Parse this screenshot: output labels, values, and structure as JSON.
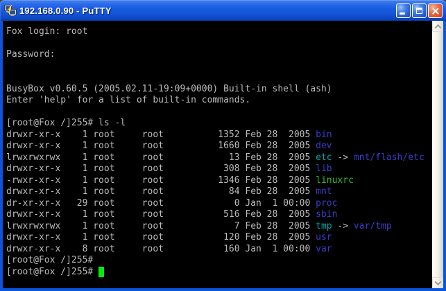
{
  "window": {
    "title": "192.168.0.90 - PuTTY",
    "icon": "putty-icon",
    "controls": {
      "minimize_label": "Minimize",
      "maximize_label": "Maximize",
      "close_label": "Close"
    }
  },
  "terminal": {
    "colors": {
      "background": "#000000",
      "fg": "#bcbcbc",
      "dir": "#3b3bcc",
      "sym": "#00aaaa",
      "exe": "#33bb33",
      "cur": "#00ee00"
    },
    "prompt": "[root@Fox /]255#",
    "lines": [
      [
        {
          "t": "Fox login: root",
          "c": "fg"
        }
      ],
      [],
      [
        {
          "t": "Password:",
          "c": "fg"
        }
      ],
      [],
      [],
      [
        {
          "t": "BusyBox v0.60.5 (2005.02.11-19:09+0000) Built-in shell (ash)",
          "c": "fg"
        }
      ],
      [
        {
          "t": "Enter 'help' for a list of built-in commands.",
          "c": "fg"
        }
      ],
      [],
      [
        {
          "t": "[root@Fox /]255# ls -l",
          "c": "fg"
        }
      ],
      [
        {
          "t": "drwxr-xr-x    1 root     root          1352 Feb 28  2005 ",
          "c": "fg"
        },
        {
          "t": "bin",
          "c": "dir"
        }
      ],
      [
        {
          "t": "drwxr-xr-x    1 root     root          1660 Feb 28  2005 ",
          "c": "fg"
        },
        {
          "t": "dev",
          "c": "dir"
        }
      ],
      [
        {
          "t": "lrwxrwxrwx    1 root     root            13 Feb 28  2005 ",
          "c": "fg"
        },
        {
          "t": "etc",
          "c": "sym"
        },
        {
          "t": " -> ",
          "c": "fg"
        },
        {
          "t": "mnt/flash/etc",
          "c": "dir"
        }
      ],
      [
        {
          "t": "drwxr-xr-x    1 root     root           308 Feb 28  2005 ",
          "c": "fg"
        },
        {
          "t": "lib",
          "c": "dir"
        }
      ],
      [
        {
          "t": "-rwxr-xr-x    1 root     root          1346 Feb 28  2005 ",
          "c": "fg"
        },
        {
          "t": "linuxrc",
          "c": "exe"
        }
      ],
      [
        {
          "t": "drwxr-xr-x    1 root     root            84 Feb 28  2005 ",
          "c": "fg"
        },
        {
          "t": "mnt",
          "c": "dir"
        }
      ],
      [
        {
          "t": "dr-xr-xr-x   29 root     root             0 Jan  1 00:00 ",
          "c": "fg"
        },
        {
          "t": "proc",
          "c": "dir"
        }
      ],
      [
        {
          "t": "drwxr-xr-x    1 root     root           516 Feb 28  2005 ",
          "c": "fg"
        },
        {
          "t": "sbin",
          "c": "dir"
        }
      ],
      [
        {
          "t": "lrwxrwxrwx    1 root     root             7 Feb 28  2005 ",
          "c": "fg"
        },
        {
          "t": "tmp",
          "c": "sym"
        },
        {
          "t": " -> ",
          "c": "fg"
        },
        {
          "t": "var/tmp",
          "c": "dir"
        }
      ],
      [
        {
          "t": "drwxr-xr-x    1 root     root           120 Feb 28  2005 ",
          "c": "fg"
        },
        {
          "t": "usr",
          "c": "dir"
        }
      ],
      [
        {
          "t": "drwxr-xr-x    8 root     root           160 Jan  1 00:00 ",
          "c": "fg"
        },
        {
          "t": "var",
          "c": "dir"
        }
      ],
      [
        {
          "t": "[root@Fox /]255#",
          "c": "fg"
        }
      ],
      [
        {
          "t": "[root@Fox /]255# ",
          "c": "fg"
        },
        {
          "t": " ",
          "c": "cur",
          "cursor": true
        }
      ]
    ]
  }
}
